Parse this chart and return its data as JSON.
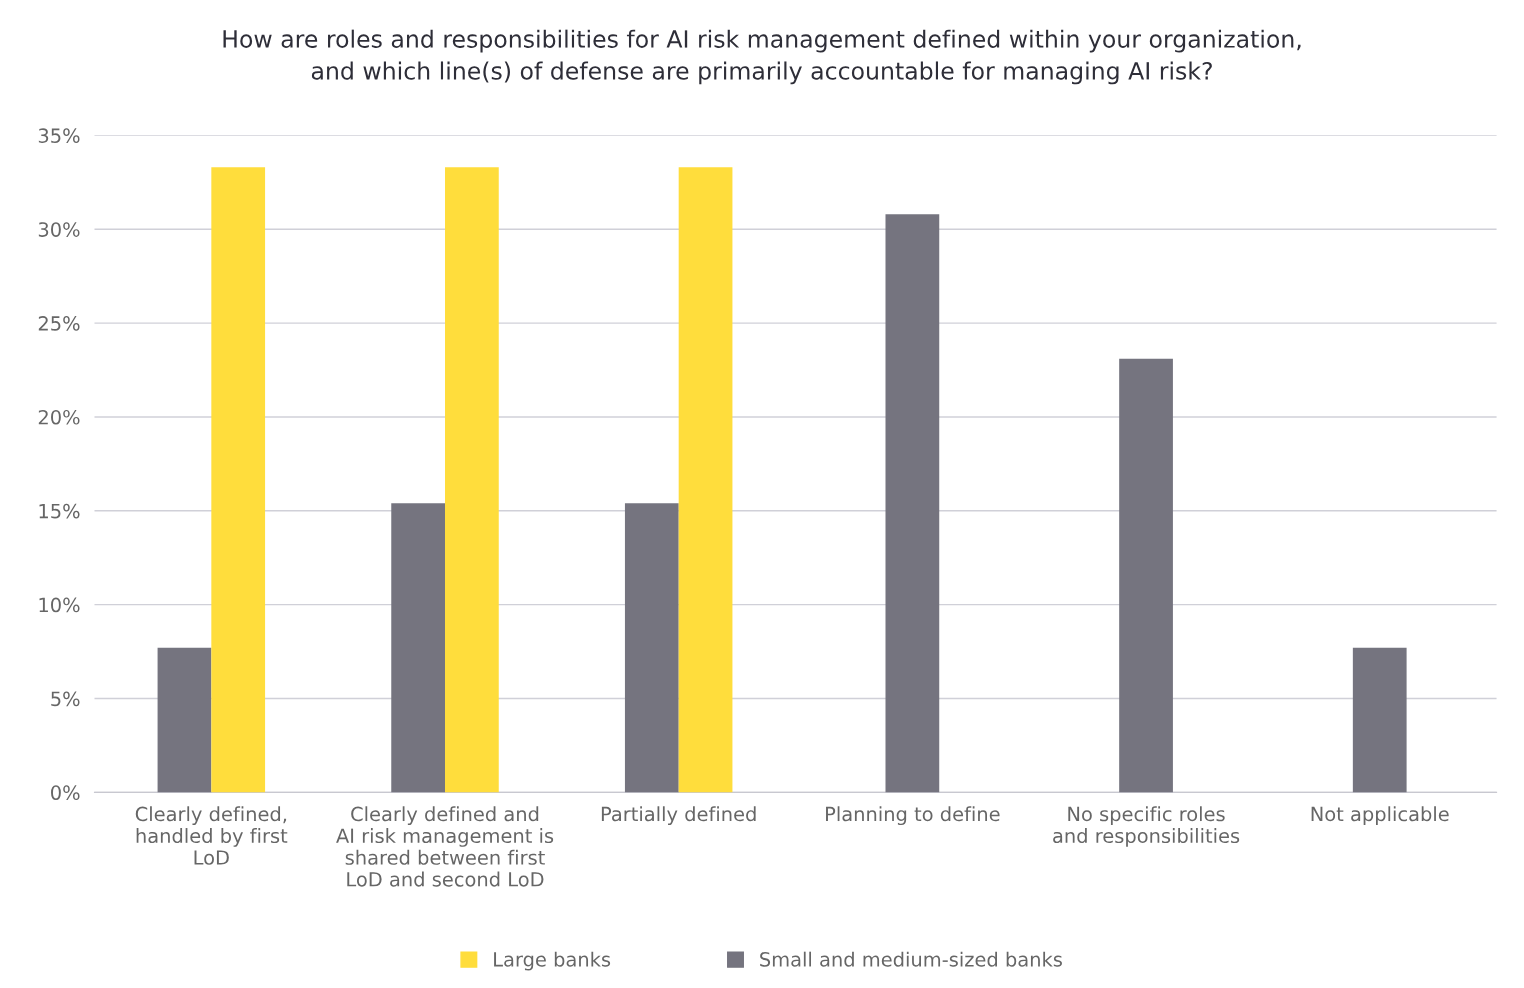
{
  "chart_data": {
    "type": "bar",
    "title": "How are roles and responsibilities for AI risk management defined within your organization,\nand which line(s) of defense are primarily accountable for managing AI risk?",
    "categories": [
      "Clearly defined,\nhandled by first\nLoD",
      "Clearly defined and\nAI risk management is\nshared between first\nLoD and second LoD",
      "Partially defined",
      "Planning to define",
      "No specific roles\nand responsibilities",
      "Not applicable"
    ],
    "series": [
      {
        "name": "Small and medium-sized banks",
        "color": "#75747f",
        "values": [
          7.7,
          15.4,
          15.4,
          30.8,
          23.1,
          7.7
        ]
      },
      {
        "name": "Large banks",
        "color": "#ffdd3c",
        "values": [
          33.3,
          33.3,
          33.3,
          null,
          null,
          null
        ]
      }
    ],
    "ylim": [
      0,
      35
    ],
    "yticks": [
      {
        "value": 0,
        "label": "0%"
      },
      {
        "value": 5,
        "label": "5%"
      },
      {
        "value": 10,
        "label": "10%"
      },
      {
        "value": 15,
        "label": "15%"
      },
      {
        "value": 20,
        "label": "20%"
      },
      {
        "value": 25,
        "label": "25%"
      },
      {
        "value": 30,
        "label": "30%"
      },
      {
        "value": 35,
        "label": "35%"
      }
    ],
    "grid": "y",
    "legend": "bottom"
  }
}
